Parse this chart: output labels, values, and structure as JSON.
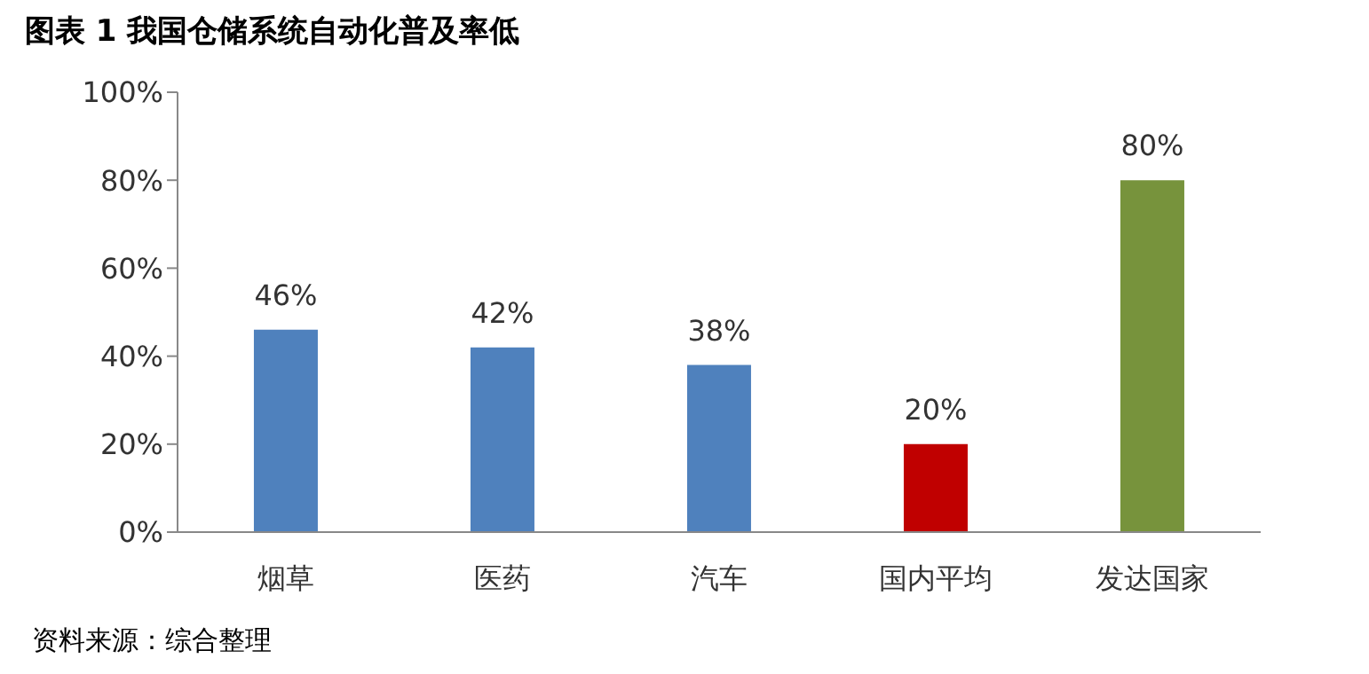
{
  "chart_data": {
    "type": "bar",
    "title": "图表 1 我国仓储系统自动化普及率低",
    "categories": [
      "烟草",
      "医药",
      "汽车",
      "国内平均",
      "发达国家"
    ],
    "values": [
      46,
      42,
      38,
      20,
      80
    ],
    "colors": [
      "#4f81bd",
      "#4f81bd",
      "#4f81bd",
      "#c00000",
      "#77933c"
    ],
    "value_labels": [
      "46%",
      "42%",
      "38%",
      "20%",
      "80%"
    ],
    "ylim": [
      0,
      100
    ],
    "yticks": [
      {
        "value": 0,
        "label": "0%"
      },
      {
        "value": 20,
        "label": "20%"
      },
      {
        "value": 40,
        "label": "40%"
      },
      {
        "value": 60,
        "label": "60%"
      },
      {
        "value": 80,
        "label": "80%"
      },
      {
        "value": 100,
        "label": "100%"
      }
    ],
    "grid": false,
    "legend": false,
    "annotations": [
      "资料来源：综合整理"
    ]
  }
}
